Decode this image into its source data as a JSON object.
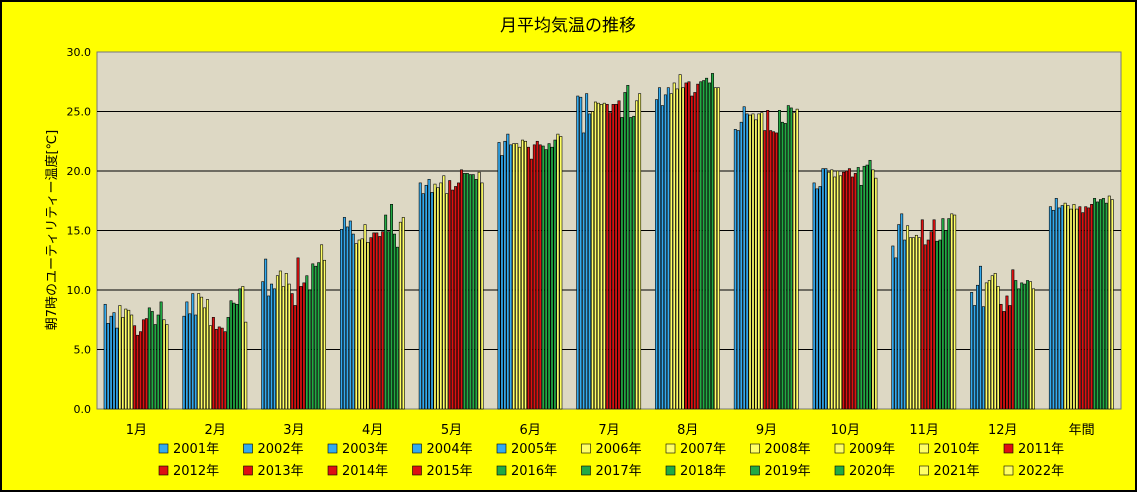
{
  "chart_data": {
    "type": "bar",
    "title": "月平均気温の推移",
    "ylabel": "朝7時のユーティリティー温度[℃]",
    "xlabel": "",
    "ylim": [
      0,
      30
    ],
    "yticks": [
      "0.0",
      "5.0",
      "10.0",
      "15.0",
      "20.0",
      "25.0",
      "30.0"
    ],
    "grid": true,
    "legend_position": "bottom",
    "categories": [
      "1月",
      "2月",
      "3月",
      "4月",
      "5月",
      "6月",
      "7月",
      "8月",
      "9月",
      "10月",
      "11月",
      "12月",
      "年間"
    ],
    "series": [
      {
        "name": "2001年",
        "color": "#33aaee",
        "values": [
          8.8,
          7.8,
          10.7,
          15.1,
          19.0,
          22.4,
          26.3,
          26.0,
          23.5,
          19.0,
          13.7,
          9.8,
          17.0
        ]
      },
      {
        "name": "2002年",
        "color": "#33aaee",
        "values": [
          7.2,
          9.0,
          12.6,
          16.1,
          18.1,
          21.3,
          26.2,
          27.0,
          23.4,
          18.5,
          12.7,
          8.7,
          16.7
        ]
      },
      {
        "name": "2003年",
        "color": "#33aaee",
        "values": [
          7.8,
          8.0,
          9.5,
          15.3,
          18.8,
          22.5,
          23.2,
          25.5,
          24.1,
          18.7,
          15.5,
          10.4,
          17.7
        ]
      },
      {
        "name": "2004年",
        "color": "#33aaee",
        "values": [
          8.1,
          9.7,
          10.5,
          15.8,
          19.3,
          23.1,
          26.5,
          26.4,
          25.4,
          20.2,
          16.4,
          12.0,
          16.9
        ]
      },
      {
        "name": "2005年",
        "color": "#33aaee",
        "values": [
          6.8,
          7.9,
          10.1,
          14.7,
          18.2,
          22.2,
          24.8,
          27.0,
          24.8,
          20.2,
          14.2,
          8.6,
          17.1
        ]
      },
      {
        "name": "2006年",
        "color": "#ffff66",
        "values": [
          8.7,
          9.7,
          11.2,
          13.9,
          18.9,
          22.3,
          25.0,
          26.5,
          24.7,
          19.9,
          15.4,
          10.6,
          17.3
        ]
      },
      {
        "name": "2007年",
        "color": "#ffff66",
        "values": [
          7.7,
          9.4,
          11.6,
          14.2,
          18.6,
          22.3,
          25.8,
          27.4,
          24.8,
          20.1,
          14.4,
          10.8,
          17.1
        ]
      },
      {
        "name": "2008年",
        "color": "#ffff66",
        "values": [
          8.4,
          8.5,
          10.3,
          14.3,
          19.0,
          22.0,
          25.7,
          26.9,
          24.3,
          19.5,
          14.4,
          11.2,
          16.8
        ]
      },
      {
        "name": "2009年",
        "color": "#ffff66",
        "values": [
          8.3,
          9.2,
          11.4,
          15.5,
          19.6,
          22.6,
          25.6,
          28.1,
          24.8,
          20.0,
          14.6,
          11.4,
          17.2
        ]
      },
      {
        "name": "2010年",
        "color": "#ffff66",
        "values": [
          7.9,
          7.0,
          10.5,
          14.0,
          18.1,
          22.5,
          25.7,
          27.0,
          24.9,
          19.6,
          14.4,
          10.3,
          16.8
        ]
      },
      {
        "name": "2011年",
        "color": "#dd1111",
        "values": [
          7.0,
          7.7,
          9.7,
          14.4,
          19.2,
          22.0,
          25.6,
          27.4,
          23.4,
          19.9,
          15.9,
          8.8,
          17.0
        ]
      },
      {
        "name": "2012年",
        "color": "#dd1111",
        "values": [
          6.2,
          6.7,
          8.7,
          14.8,
          18.4,
          21.0,
          24.9,
          27.5,
          25.1,
          20.0,
          13.8,
          8.2,
          16.5
        ]
      },
      {
        "name": "2013年",
        "color": "#dd1111",
        "values": [
          6.5,
          6.9,
          12.7,
          14.8,
          18.7,
          22.2,
          25.6,
          26.3,
          23.4,
          20.2,
          14.2,
          9.5,
          17.0
        ]
      },
      {
        "name": "2014年",
        "color": "#dd1111",
        "values": [
          7.5,
          6.8,
          10.3,
          14.5,
          19.0,
          22.5,
          25.6,
          26.6,
          23.3,
          19.5,
          14.9,
          8.7,
          16.9
        ]
      },
      {
        "name": "2015年",
        "color": "#dd1111",
        "values": [
          7.6,
          6.5,
          10.6,
          14.9,
          20.1,
          22.2,
          25.9,
          27.3,
          23.2,
          19.8,
          15.9,
          11.7,
          17.2
        ]
      },
      {
        "name": "2016年",
        "color": "#22aa44",
        "values": [
          8.5,
          7.7,
          11.2,
          16.3,
          19.8,
          22.1,
          24.5,
          27.5,
          25.1,
          20.3,
          14.1,
          10.8,
          17.7
        ]
      },
      {
        "name": "2017年",
        "color": "#22aa44",
        "values": [
          8.2,
          9.1,
          10.0,
          14.9,
          19.8,
          21.8,
          26.6,
          27.6,
          24.1,
          18.8,
          14.2,
          10.1,
          17.4
        ]
      },
      {
        "name": "2018年",
        "color": "#22aa44",
        "values": [
          7.1,
          8.9,
          12.2,
          17.2,
          19.7,
          22.3,
          27.2,
          27.8,
          24.0,
          20.4,
          16.0,
          10.6,
          17.6
        ]
      },
      {
        "name": "2019年",
        "color": "#22aa44",
        "values": [
          7.9,
          8.8,
          12.0,
          14.7,
          19.7,
          22.0,
          24.5,
          27.4,
          25.5,
          20.5,
          15.0,
          10.5,
          17.7
        ]
      },
      {
        "name": "2020年",
        "color": "#22aa44",
        "values": [
          9.0,
          10.1,
          12.3,
          13.6,
          19.3,
          22.6,
          24.6,
          28.2,
          25.3,
          20.9,
          16.0,
          10.8,
          17.3
        ]
      },
      {
        "name": "2021年",
        "color": "#ffff66",
        "values": [
          7.5,
          10.3,
          13.8,
          15.7,
          19.9,
          23.1,
          25.9,
          27.0,
          24.9,
          20.1,
          16.4,
          10.7,
          17.9
        ]
      },
      {
        "name": "2022年",
        "color": "#ffff66",
        "values": [
          7.1,
          7.3,
          12.5,
          16.1,
          19.0,
          22.9,
          26.5,
          27.0,
          25.2,
          19.4,
          16.3,
          10.1,
          17.6
        ]
      }
    ]
  }
}
